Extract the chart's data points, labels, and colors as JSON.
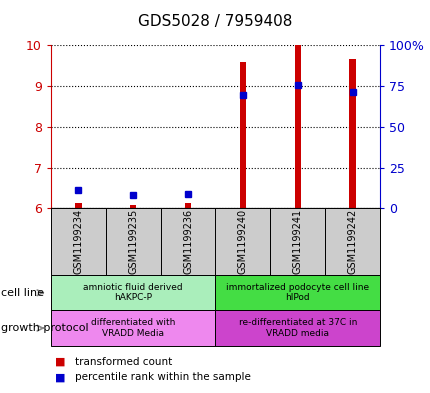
{
  "title": "GDS5028 / 7959408",
  "samples": [
    "GSM1199234",
    "GSM1199235",
    "GSM1199236",
    "GSM1199240",
    "GSM1199241",
    "GSM1199242"
  ],
  "red_values": [
    6.12,
    6.07,
    6.12,
    9.6,
    10.0,
    9.65
  ],
  "blue_values": [
    6.45,
    6.32,
    6.35,
    8.78,
    9.02,
    8.85
  ],
  "ylim_left": [
    6,
    10
  ],
  "ylim_right": [
    0,
    100
  ],
  "yticks_left": [
    6,
    7,
    8,
    9,
    10
  ],
  "yticks_right": [
    0,
    25,
    50,
    75,
    100
  ],
  "ytick_labels_right": [
    "0",
    "25",
    "50",
    "75",
    "100%"
  ],
  "left_color": "#cc0000",
  "right_color": "#0000cc",
  "cell_line_labels": [
    "amniotic fluid derived\nhAKPC-P",
    "immortalized podocyte cell line\nhIPod"
  ],
  "cell_line_colors": [
    "#aaeebb",
    "#44dd44"
  ],
  "growth_protocol_labels": [
    "differentiated with\nVRADD Media",
    "re-differentiated at 37C in\nVRADD media"
  ],
  "growth_protocol_colors": [
    "#ee88ee",
    "#cc44cc"
  ],
  "background_color": "#ffffff",
  "sample_box_color": "#cccccc",
  "bar_width": 0.12
}
